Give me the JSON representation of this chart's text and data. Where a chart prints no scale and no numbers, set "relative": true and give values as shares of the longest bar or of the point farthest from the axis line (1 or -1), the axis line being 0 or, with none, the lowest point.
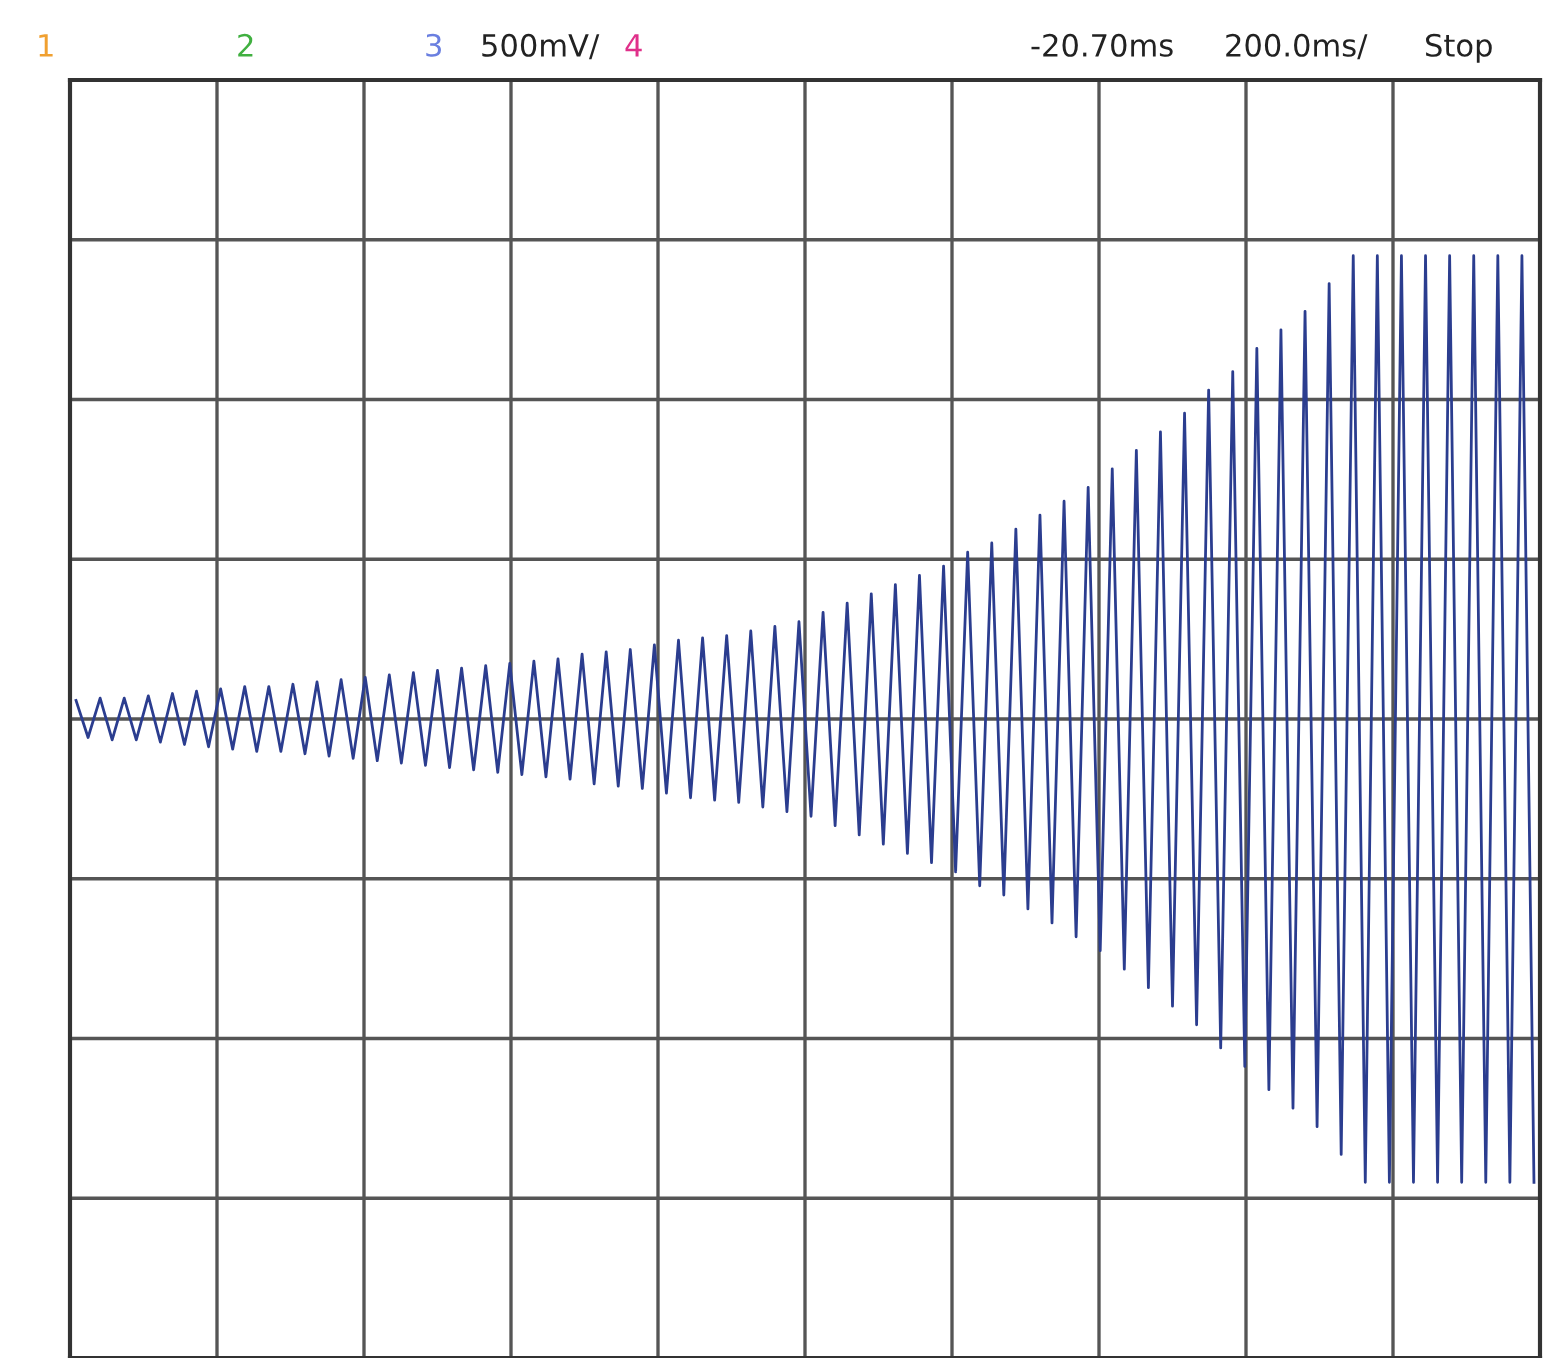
{
  "chart_data": {
    "type": "line",
    "relative": true,
    "grid": true,
    "legend": false,
    "marker": "none",
    "line_style": "solid",
    "annotations": [
      "1",
      "2",
      "3",
      "500mV/",
      "4",
      "-20.70ms",
      "200.0ms/",
      "Stop"
    ],
    "categories": [
      null,
      null,
      null,
      null,
      null,
      null,
      null,
      null,
      null,
      null,
      null,
      null,
      null,
      null,
      null,
      null,
      null,
      null,
      null,
      null,
      null,
      null,
      null,
      null,
      null,
      null,
      null,
      null,
      null,
      null,
      null,
      null,
      null,
      null,
      null,
      null,
      null,
      null,
      null,
      null,
      null,
      null,
      null,
      null,
      null,
      null,
      null,
      null,
      null,
      null,
      null,
      null,
      null,
      null,
      null,
      null,
      null,
      null,
      null,
      null,
      null,
      null,
      null,
      null,
      null,
      null,
      null,
      null,
      null,
      null,
      null,
      null,
      null,
      null,
      null,
      null,
      null,
      null,
      null,
      null,
      null,
      null,
      null,
      null,
      null,
      null,
      null,
      null,
      null,
      null,
      null,
      null,
      null,
      null,
      null,
      null,
      null,
      null,
      null,
      null,
      null,
      null,
      null,
      null,
      null,
      null,
      null,
      null,
      null,
      null,
      null,
      null,
      null,
      null,
      null,
      null,
      null,
      null,
      null,
      null,
      null,
      null
    ],
    "series": [
      {
        "color": "#2b3d8f",
        "values": [
          0.04,
          -0.04,
          0.045,
          -0.045,
          0.045,
          -0.045,
          0.05,
          -0.05,
          0.055,
          -0.055,
          0.06,
          -0.06,
          0.065,
          -0.065,
          0.07,
          -0.07,
          0.07,
          -0.07,
          0.075,
          -0.075,
          0.08,
          -0.08,
          0.085,
          -0.085,
          0.09,
          -0.09,
          0.095,
          -0.095,
          0.1,
          -0.1,
          0.105,
          -0.105,
          0.11,
          -0.11,
          0.115,
          -0.115,
          0.12,
          -0.12,
          0.125,
          -0.125,
          0.13,
          -0.13,
          0.14,
          -0.14,
          0.145,
          -0.145,
          0.15,
          -0.15,
          0.16,
          -0.16,
          0.17,
          -0.17,
          0.175,
          -0.175,
          0.18,
          -0.18,
          0.19,
          -0.19,
          0.2,
          -0.2,
          0.21,
          -0.21,
          0.23,
          -0.23,
          0.25,
          -0.25,
          0.27,
          -0.27,
          0.29,
          -0.29,
          0.31,
          -0.31,
          0.33,
          -0.33,
          0.36,
          -0.36,
          0.38,
          -0.38,
          0.41,
          -0.41,
          0.44,
          -0.44,
          0.47,
          -0.47,
          0.5,
          -0.5,
          0.54,
          -0.54,
          0.58,
          -0.58,
          0.62,
          -0.62,
          0.66,
          -0.66,
          0.71,
          -0.71,
          0.75,
          -0.75,
          0.8,
          -0.8,
          0.84,
          -0.84,
          0.88,
          -0.88,
          0.94,
          -0.94,
          1,
          -1,
          1,
          -1,
          1,
          -1,
          1,
          -1,
          1,
          -1,
          1,
          -1,
          1,
          -1,
          1,
          -1
        ]
      }
    ]
  }
}
